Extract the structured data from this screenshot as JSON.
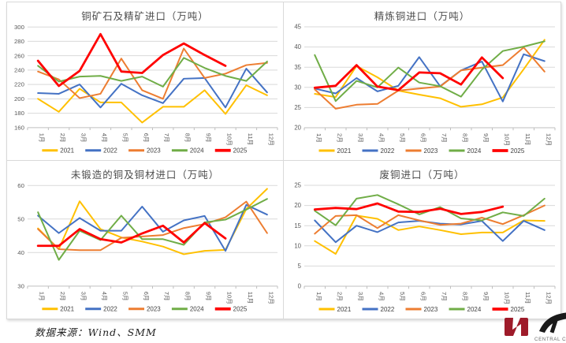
{
  "footer": {
    "source": "数据来源：Wind、SMM"
  },
  "logo": {
    "caption": "CENTRAL C",
    "box_color": "#9e1b2a",
    "stroke_color": "#1a1a1a",
    "caption_color": "#6b6b6b"
  },
  "style": {
    "grid_color": "#d9d9d9",
    "axis_color": "#bfbfbf",
    "tick_label_color": "#595959",
    "title_color": "#4d4d4d",
    "legend_text_color": "#404040"
  },
  "chart_data": [
    {
      "type": "line",
      "title": "铜矿石及精矿进口（万吨）",
      "xlabel": "",
      "ylabel": "",
      "ylim": [
        160,
        300
      ],
      "yticks": [
        160,
        180,
        200,
        220,
        240,
        260,
        280,
        300
      ],
      "grid": true,
      "legend_position": "bottom",
      "categories": [
        "1月",
        "2月",
        "3月",
        "4月",
        "5月",
        "6月",
        "7月",
        "8月",
        "9月",
        "10月",
        "11月",
        "12月"
      ],
      "series": [
        {
          "name": "2021",
          "color": "#FFC000",
          "width": 2,
          "values": [
            200,
            182,
            214,
            195,
            195,
            167,
            189,
            189,
            212,
            179,
            219,
            205
          ]
        },
        {
          "name": "2022",
          "color": "#4472C4",
          "width": 2,
          "values": [
            208,
            207,
            220,
            188,
            221,
            205,
            194,
            228,
            229,
            188,
            242,
            209
          ]
        },
        {
          "name": "2023",
          "color": "#ED7D31",
          "width": 2,
          "values": [
            238,
            227,
            201,
            207,
            256,
            212,
            200,
            270,
            229,
            235,
            247,
            250
          ]
        },
        {
          "name": "2024",
          "color": "#70AD47",
          "width": 2,
          "values": [
            246,
            224,
            231,
            232,
            225,
            231,
            217,
            257,
            243,
            232,
            225,
            252
          ]
        },
        {
          "name": "2025",
          "color": "#FF0000",
          "width": 2.8,
          "values": [
            253,
            218,
            239,
            290,
            238,
            236,
            261,
            277,
            261,
            246
          ]
        }
      ]
    },
    {
      "type": "line",
      "title": "精炼铜进口（万吨）",
      "xlabel": "",
      "ylabel": "",
      "ylim": [
        20,
        45
      ],
      "yticks": [
        20,
        25,
        30,
        35,
        40,
        45
      ],
      "grid": true,
      "legend_position": "bottom",
      "categories": [
        "1月",
        "2月",
        "3月",
        "4月",
        "5月",
        "6月",
        "7月",
        "8月",
        "9月",
        "10月",
        "11月",
        "12月"
      ],
      "series": [
        {
          "name": "2021",
          "color": "#FFC000",
          "width": 2,
          "values": [
            28.4,
            27.6,
            35.3,
            32.5,
            29.2,
            28.2,
            27.3,
            25.2,
            25.8,
            27.5,
            34.5,
            41.8
          ]
        },
        {
          "name": "2022",
          "color": "#4472C4",
          "width": 2,
          "values": [
            29.7,
            28.5,
            32.3,
            29,
            30.4,
            37.5,
            30.3,
            34.2,
            36.4,
            26.5,
            38.2,
            36.5
          ]
        },
        {
          "name": "2023",
          "color": "#ED7D31",
          "width": 2,
          "values": [
            29.5,
            24.7,
            25.7,
            25.9,
            29.2,
            29.7,
            30.2,
            34.2,
            34.9,
            35.5,
            39.9,
            33.9
          ]
        },
        {
          "name": "2024",
          "color": "#70AD47",
          "width": 2,
          "values": [
            38,
            26.6,
            31.6,
            30,
            34.9,
            31.2,
            30.3,
            27.7,
            34.4,
            39,
            40.1,
            41.4
          ]
        },
        {
          "name": "2025",
          "color": "#FF0000",
          "width": 2.8,
          "values": [
            29.9,
            30.4,
            35.5,
            30.2,
            29.3,
            33.7,
            33.5,
            30.7,
            37.4,
            32.3
          ]
        }
      ]
    },
    {
      "type": "line",
      "title": "未锻造的铜及铜材进口（万吨）",
      "xlabel": "",
      "ylabel": "",
      "ylim": [
        30,
        60
      ],
      "yticks": [
        30,
        40,
        50,
        60
      ],
      "grid": true,
      "legend_position": "bottom",
      "categories": [
        "1月",
        "2月",
        "3月",
        "4月",
        "5月",
        "6月",
        "7月",
        "8月",
        "9月",
        "10月",
        "11月",
        "12月"
      ],
      "series": [
        {
          "name": "2021",
          "color": "#FFC000",
          "width": 2,
          "values": [
            47.2,
            41,
            55.3,
            47,
            44.5,
            43.3,
            41.8,
            39.5,
            40.5,
            40.8,
            53,
            59
          ]
        },
        {
          "name": "2022",
          "color": "#4472C4",
          "width": 2,
          "values": [
            51,
            45.8,
            50.3,
            46.5,
            46.5,
            53.7,
            46.2,
            49.6,
            50.9,
            40.5,
            54.2,
            51.3
          ]
        },
        {
          "name": "2023",
          "color": "#ED7D31",
          "width": 2,
          "values": [
            47,
            41,
            40.7,
            40.7,
            44.4,
            44.8,
            45.2,
            47.3,
            48.5,
            50.5,
            55.2,
            45.8
          ]
        },
        {
          "name": "2024",
          "color": "#70AD47",
          "width": 2,
          "values": [
            52,
            37.8,
            46.5,
            43.7,
            51,
            44,
            44,
            42.3,
            49,
            49.8,
            52.8,
            56
          ]
        },
        {
          "name": "2025",
          "color": "#FF0000",
          "width": 2.8,
          "values": [
            42,
            42,
            47,
            44,
            43,
            45.7,
            48,
            43,
            48.8,
            44.2
          ]
        }
      ]
    },
    {
      "type": "line",
      "title": "废铜进口（万吨）",
      "xlabel": "",
      "ylabel": "",
      "ylim": [
        0,
        25
      ],
      "yticks": [
        0,
        5,
        10,
        15,
        20,
        25
      ],
      "grid": true,
      "legend_position": "bottom",
      "categories": [
        "1月",
        "2月",
        "3月",
        "4月",
        "5月",
        "6月",
        "7月",
        "8月",
        "9月",
        "10月",
        "11月",
        "12月"
      ],
      "series": [
        {
          "name": "2021",
          "color": "#FFC000",
          "width": 2,
          "values": [
            11.2,
            8,
            17.5,
            16.7,
            13.9,
            14.8,
            13.9,
            12.9,
            13.3,
            13.3,
            16.3,
            16.2
          ]
        },
        {
          "name": "2022",
          "color": "#4472C4",
          "width": 2,
          "values": [
            16.3,
            10.9,
            15,
            13.4,
            15.8,
            16.2,
            15.5,
            15.3,
            16.2,
            11.2,
            16.2,
            13.9
          ]
        },
        {
          "name": "2023",
          "color": "#ED7D31",
          "width": 2,
          "values": [
            13,
            17.4,
            17.6,
            14.4,
            17.6,
            16.3,
            15.2,
            15.5,
            17,
            15.4,
            17.6,
            20
          ]
        },
        {
          "name": "2024",
          "color": "#70AD47",
          "width": 2,
          "values": [
            18.7,
            15.1,
            21.7,
            22.6,
            20.3,
            17.8,
            19.6,
            16.8,
            16.3,
            18.3,
            17.4,
            21.7
          ]
        },
        {
          "name": "2025",
          "color": "#FF0000",
          "width": 2.8,
          "values": [
            19,
            19.4,
            19.1,
            20.5,
            18.5,
            18.4,
            19.2,
            17.9,
            18.4,
            19.7
          ]
        }
      ]
    }
  ]
}
